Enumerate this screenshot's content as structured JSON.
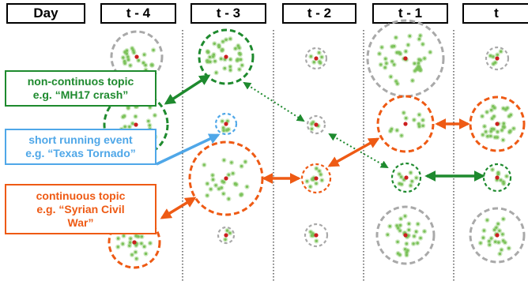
{
  "headers": [
    "Day",
    "t - 4",
    "t - 3",
    "t - 2",
    "t - 1",
    "t"
  ],
  "labels": {
    "green": {
      "line1": "non-continuos topic",
      "line2": "e.g. “MH17 crash”",
      "color": "#1e8a2e"
    },
    "blue": {
      "line1": "short running event",
      "line2": "e.g. “Texas Tornado”",
      "color": "#4fa7e8"
    },
    "orange": {
      "line1": "continuous topic",
      "line2": "e.g. “Syrian Civil",
      "line3": "War”",
      "color": "#ee5a14"
    }
  },
  "colors": {
    "gray": "#a9a9a9",
    "green": "#1e8a2e",
    "blue": "#4fa7e8",
    "orange": "#ee5a14",
    "dot": "#7cc25a",
    "center": "#cc1f1f"
  }
}
